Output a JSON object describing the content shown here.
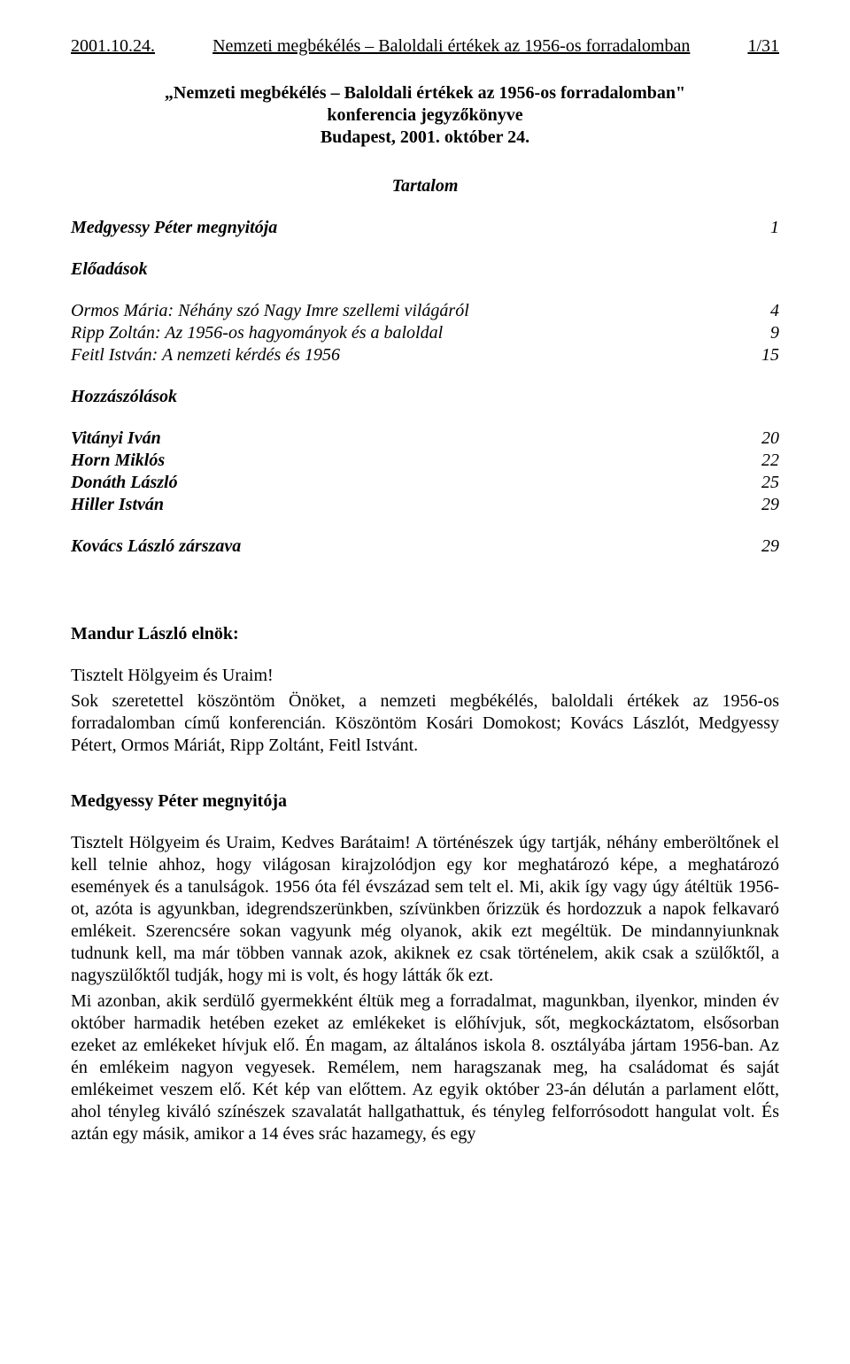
{
  "header": {
    "left": "2001.10.24.",
    "center": "Nemzeti megbékélés – Baloldali értékek az 1956-os forradalomban",
    "right": "1/31"
  },
  "title": {
    "line1": "„Nemzeti megbékélés – Baloldali értékek az 1956-os forradalomban\"",
    "line2": "konferencia jegyzőkönyve",
    "line3": "Budapest, 2001. október 24."
  },
  "toc": {
    "heading": "Tartalom",
    "opening": {
      "label": "Medgyessy Péter megnyitója",
      "page": "1"
    },
    "lectures_label": "Előadások",
    "lectures": [
      {
        "label": "Ormos Mária: Néhány szó Nagy Imre szellemi világáról",
        "page": "4"
      },
      {
        "label": "Ripp Zoltán: Az 1956-os hagyományok és a baloldal",
        "page": "9"
      },
      {
        "label": "Feitl István: A nemzeti kérdés és 1956",
        "page": "15"
      }
    ],
    "comments_label": "Hozzászólások",
    "comments": [
      {
        "label": "Vitányi Iván",
        "page": "20"
      },
      {
        "label": "Horn Miklós",
        "page": "22"
      },
      {
        "label": "Donáth László",
        "page": "25"
      },
      {
        "label": "Hiller István",
        "page": "29"
      }
    ],
    "closing": {
      "label": "Kovács László zárszava",
      "page": "29"
    }
  },
  "body": {
    "speaker1": "Mandur László elnök:",
    "p1": "Tisztelt Hölgyeim és Uraim!",
    "p2": "Sok szeretettel köszöntöm Önöket, a nemzeti megbékélés, baloldali értékek az 1956-os forradalomban című konferencián. Köszöntöm Kosári Domokost; Kovács Lászlót, Medgyessy Pétert, Ormos Máriát, Ripp Zoltánt, Feitl Istvánt.",
    "speaker2": "Medgyessy Péter megnyitója",
    "p3": "Tisztelt Hölgyeim és Uraim, Kedves Barátaim! A történészek úgy tartják, néhány emberöltőnek el kell telnie ahhoz, hogy világosan kirajzolódjon egy kor meghatározó képe, a meghatározó események és a tanulságok. 1956 óta fél évszázad sem telt el. Mi, akik így vagy úgy átéltük 1956-ot, azóta is agyunkban, idegrendszerünkben, szívünkben őrizzük és hordozzuk a napok felkavaró emlékeit. Szerencsére sokan vagyunk még olyanok, akik ezt megéltük. De mindannyiunknak tudnunk kell, ma már többen vannak azok, akiknek ez csak történelem, akik csak a szülőktől, a nagyszülőktől tudják, hogy mi is volt, és hogy látták ők ezt.",
    "p4": "Mi azonban, akik serdülő gyermekként éltük meg a forradalmat, magunkban, ilyenkor, minden év október harmadik hetében ezeket az emlékeket is előhívjuk, sőt, megkockáztatom, elsősorban ezeket az emlékeket hívjuk elő. Én magam, az általános iskola 8. osztályába jártam 1956-ban. Az én emlékeim nagyon vegyesek. Remélem, nem haragszanak meg, ha családomat és saját emlékeimet veszem elő. Két kép van előttem. Az egyik október 23-án délután a parlament előtt, ahol tényleg kiváló színészek szavalatát hallgathattuk, és tényleg felforrósodott hangulat volt. És aztán egy másik, amikor a 14 éves srác hazamegy, és egy"
  }
}
